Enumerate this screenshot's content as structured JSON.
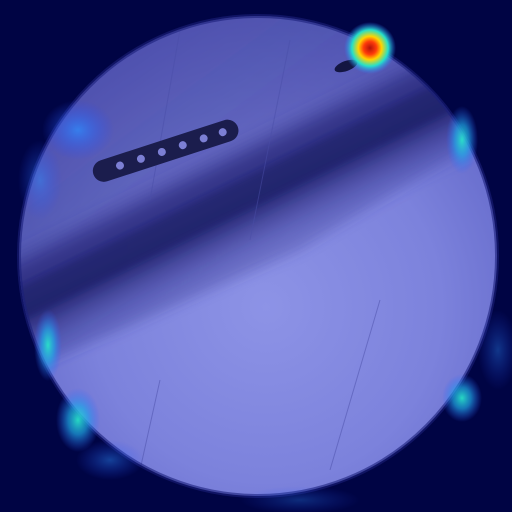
{
  "image": {
    "background_color": "#000444",
    "fluoroscopy_field": {
      "fill_light": "#8a8fe0",
      "fill_mid": "#6f75d2",
      "fill_dark": "#3e3f9a",
      "rim_color": "#1b1f7a"
    },
    "shaft": {
      "color": "#2a2b7a",
      "shadow_color": "#191a5a"
    },
    "implant_plate": {
      "color": "#1b1d4d",
      "hole_color": "#7c7fd4",
      "hole_count": 6
    },
    "heatmap": {
      "colormap": "jet",
      "hot_color": "#d01a08",
      "warm_color": "#ffcc00",
      "mid_color": "#19d8c7",
      "cool_color": "#2f7cff"
    }
  }
}
